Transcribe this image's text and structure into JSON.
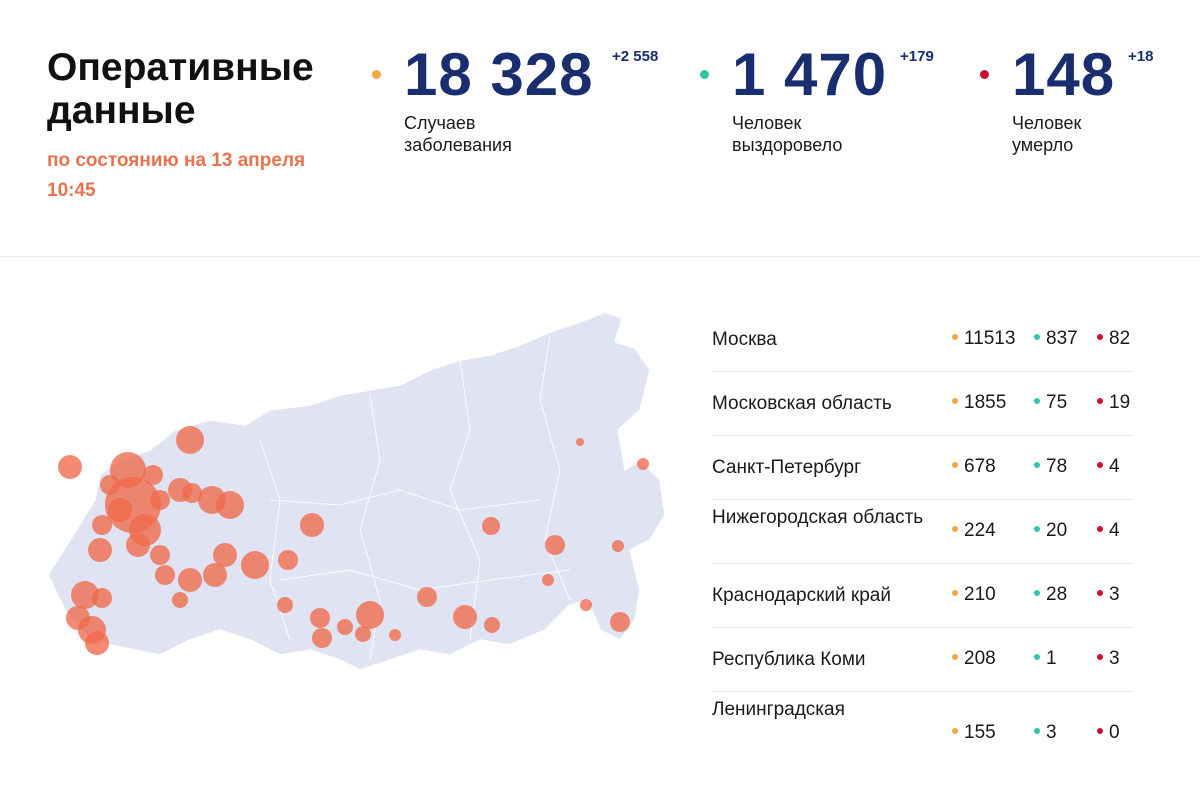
{
  "header": {
    "title": "Оперативные данные",
    "as_of_line1": "по состоянию на 13 апреля",
    "as_of_line2": "10:45"
  },
  "colors": {
    "cases": "#f0a940",
    "recovered": "#2ec4a8",
    "deaths": "#c8102e",
    "numbers": "#1a2d6e",
    "accent": "#e8734a",
    "map_land": "#dfe3f2",
    "map_bubble": "#f06a4c"
  },
  "stats": [
    {
      "key": "cases",
      "value": "18 328",
      "delta": "+2 558",
      "label_line1": "Случаев",
      "label_line2": "заболевания"
    },
    {
      "key": "recovered",
      "value": "1 470",
      "delta": "+179",
      "label_line1": "Человек",
      "label_line2": "выздоровело"
    },
    {
      "key": "deaths",
      "value": "148",
      "delta": "+18",
      "label_line1": "Человек",
      "label_line2": "умерло"
    }
  ],
  "regions": [
    {
      "name": "Москва",
      "cases": "11513",
      "recovered": "837",
      "deaths": "82"
    },
    {
      "name": "Московская область",
      "cases": "1855",
      "recovered": "75",
      "deaths": "19"
    },
    {
      "name": "Санкт-Петербург",
      "cases": "678",
      "recovered": "78",
      "deaths": "4"
    },
    {
      "name": "Нижегородская область",
      "cases": "224",
      "recovered": "20",
      "deaths": "4"
    },
    {
      "name": "Краснодарский край",
      "cases": "210",
      "recovered": "28",
      "deaths": "3"
    },
    {
      "name": "Республика Коми",
      "cases": "208",
      "recovered": "1",
      "deaths": "3"
    },
    {
      "name": "Ленинградская",
      "cases": "155",
      "recovered": "3",
      "deaths": "0"
    }
  ],
  "map": {
    "region": "Russia",
    "marker_meaning": "confirmed cases by region (circle size)"
  }
}
